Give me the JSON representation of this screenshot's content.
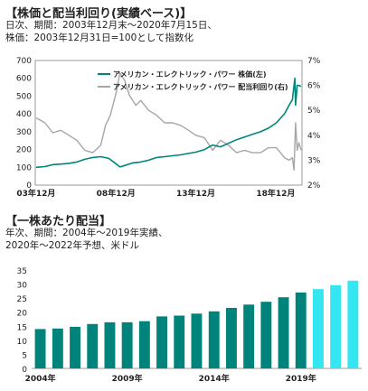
{
  "colors": {
    "price": "#00857a",
    "yield": "#a6a6a6",
    "actual": "#00837b",
    "forecast": "#33e6f2",
    "frame": "#9a9a9a",
    "background": "#ffffff"
  },
  "chart_data": [
    {
      "type": "line",
      "title": "【株価と配当利回り(実績ベース)】",
      "subtitle": [
        "日次、期間：2003年12月末～2020年7月15日、",
        "株価：2003年12月31日=100として指数化"
      ],
      "x_range": [
        2003.9,
        2020.6
      ],
      "x_ticks": [
        {
          "label": "03年12月",
          "x": 2003.95
        },
        {
          "label": "08年12月",
          "x": 2008.95
        },
        {
          "label": "13年12月",
          "x": 2013.95
        },
        {
          "label": "18年12月",
          "x": 2018.95
        }
      ],
      "y_left": {
        "ticks": [
          0,
          100,
          200,
          300,
          400,
          500,
          600,
          700
        ],
        "range": [
          0,
          700
        ]
      },
      "y_right": {
        "ticks": [
          "2%",
          "3%",
          "4%",
          "5%",
          "6%",
          "7%"
        ],
        "range": [
          2,
          7
        ]
      },
      "grid": false,
      "legend": "top-right",
      "series": [
        {
          "name": "アメリカン・エレクトリック・パワー 株価(左)",
          "axis": "left",
          "points": [
            [
              2003.95,
              100
            ],
            [
              2004.5,
              104
            ],
            [
              2005.0,
              115
            ],
            [
              2005.5,
              118
            ],
            [
              2006.0,
              122
            ],
            [
              2006.5,
              130
            ],
            [
              2007.0,
              145
            ],
            [
              2007.5,
              155
            ],
            [
              2008.0,
              160
            ],
            [
              2008.5,
              150
            ],
            [
              2008.95,
              120
            ],
            [
              2009.2,
              102
            ],
            [
              2009.5,
              110
            ],
            [
              2010.0,
              125
            ],
            [
              2010.5,
              130
            ],
            [
              2011.0,
              140
            ],
            [
              2011.5,
              155
            ],
            [
              2012.0,
              160
            ],
            [
              2012.5,
              165
            ],
            [
              2013.0,
              170
            ],
            [
              2013.5,
              178
            ],
            [
              2013.95,
              185
            ],
            [
              2014.5,
              200
            ],
            [
              2015.0,
              225
            ],
            [
              2015.5,
              215
            ],
            [
              2016.0,
              235
            ],
            [
              2016.5,
              255
            ],
            [
              2017.0,
              270
            ],
            [
              2017.5,
              285
            ],
            [
              2018.0,
              300
            ],
            [
              2018.5,
              320
            ],
            [
              2019.0,
              350
            ],
            [
              2019.5,
              400
            ],
            [
              2019.8,
              450
            ],
            [
              2020.0,
              480
            ],
            [
              2020.15,
              600
            ],
            [
              2020.2,
              450
            ],
            [
              2020.3,
              560
            ],
            [
              2020.4,
              560
            ],
            [
              2020.55,
              555
            ]
          ]
        },
        {
          "name": "アメリカン・エレクトリック・パワー 配当利回り(右)",
          "axis": "right",
          "points": [
            [
              2003.95,
              4.7
            ],
            [
              2004.5,
              4.5
            ],
            [
              2005.0,
              4.1
            ],
            [
              2005.5,
              4.2
            ],
            [
              2006.0,
              4.0
            ],
            [
              2006.5,
              3.8
            ],
            [
              2007.0,
              3.4
            ],
            [
              2007.5,
              3.3
            ],
            [
              2008.0,
              3.6
            ],
            [
              2008.3,
              4.4
            ],
            [
              2008.6,
              4.8
            ],
            [
              2009.0,
              5.8
            ],
            [
              2009.2,
              6.5
            ],
            [
              2009.5,
              6.2
            ],
            [
              2009.8,
              5.6
            ],
            [
              2010.2,
              5.2
            ],
            [
              2010.5,
              5.4
            ],
            [
              2011.0,
              5.0
            ],
            [
              2011.5,
              4.8
            ],
            [
              2012.0,
              4.5
            ],
            [
              2012.5,
              4.5
            ],
            [
              2013.0,
              4.4
            ],
            [
              2013.5,
              4.2
            ],
            [
              2013.95,
              4.0
            ],
            [
              2014.5,
              3.9
            ],
            [
              2015.0,
              3.4
            ],
            [
              2015.5,
              3.8
            ],
            [
              2016.0,
              3.6
            ],
            [
              2016.5,
              3.3
            ],
            [
              2017.0,
              3.4
            ],
            [
              2017.5,
              3.3
            ],
            [
              2018.0,
              3.3
            ],
            [
              2018.5,
              3.5
            ],
            [
              2019.0,
              3.5
            ],
            [
              2019.5,
              3.1
            ],
            [
              2019.8,
              3.0
            ],
            [
              2020.0,
              3.1
            ],
            [
              2020.1,
              2.6
            ],
            [
              2020.2,
              4.5
            ],
            [
              2020.3,
              3.4
            ],
            [
              2020.4,
              3.7
            ],
            [
              2020.55,
              3.4
            ]
          ]
        }
      ]
    },
    {
      "type": "bar",
      "title": "【一株あたり配当】",
      "subtitle": [
        "年次、期間：2004年～2019年実績、",
        "2020年～2022年予想、米ドル"
      ],
      "years": [
        2004,
        2005,
        2006,
        2007,
        2008,
        2009,
        2010,
        2011,
        2012,
        2013,
        2014,
        2015,
        2016,
        2017,
        2018,
        2019,
        2020,
        2021,
        2022
      ],
      "values": [
        14.0,
        14.2,
        14.8,
        15.8,
        16.4,
        16.4,
        16.8,
        18.5,
        18.8,
        19.5,
        20.3,
        21.5,
        22.7,
        23.7,
        25.3,
        27.0,
        28.2,
        29.6,
        31.2
      ],
      "forecast_from": 2020,
      "x_tick_labels": [
        {
          "label": "2004年",
          "year": 2004
        },
        {
          "label": "2009年",
          "year": 2009
        },
        {
          "label": "2014年",
          "year": 2014
        },
        {
          "label": "2019年",
          "year": 2019
        }
      ],
      "y_ticks": [
        "0",
        "5",
        "10",
        "15",
        "20",
        "25",
        "30",
        "35"
      ],
      "ylim": [
        0,
        35
      ],
      "grid": false
    }
  ]
}
